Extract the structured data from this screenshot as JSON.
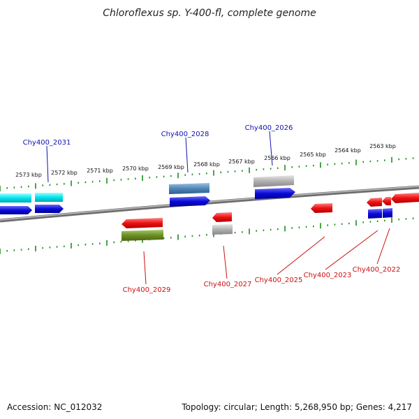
{
  "title": "Chloroflexus sp. Y-400-fl, complete genome",
  "footer": {
    "accession": "Accession: NC_012032",
    "summary": "Topology: circular; Length: 5,268,950 bp; Genes: 4,217"
  },
  "colors": {
    "backbone": "#808080",
    "tick": "#1f8a1f",
    "forward_label": "#1010b0",
    "reverse_label": "#cc1010",
    "cyan": "#00e5ee",
    "blue": "#0a0ad8",
    "steel": "#4f86b8",
    "gray": "#b0b0b0",
    "red": "#ee1010",
    "olive": "#6b8e23"
  },
  "scale_labels": [
    "2573 kbp",
    "2572 kbp",
    "2571 kbp",
    "2570 kbp",
    "2569 kbp",
    "2568 kbp",
    "2567 kbp",
    "2566 kbp",
    "2565 kbp",
    "2564 kbp",
    "2563 kbp"
  ],
  "genes_forward_labels": [
    "Chy400_2031",
    "Chy400_2028",
    "Chy400_2026"
  ],
  "genes_reverse_labels": [
    "Chy400_2029",
    "Chy400_2027",
    "Chy400_2025",
    "Chy400_2023",
    "Chy400_2022"
  ]
}
